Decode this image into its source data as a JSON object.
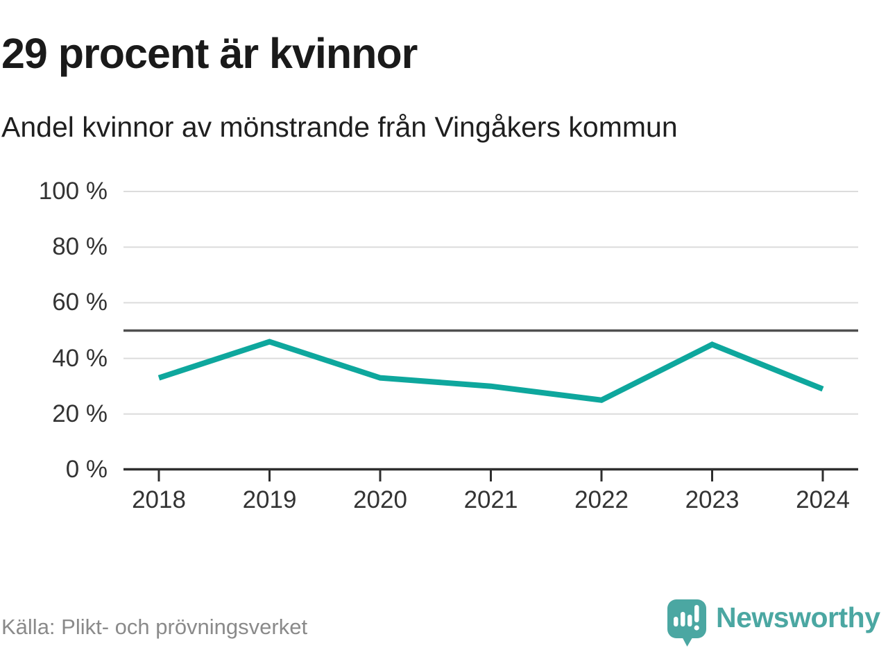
{
  "header": {
    "title": "29 procent är kvinnor",
    "subtitle": "Andel kvinnor av mönstrande från Vingåkers kommun"
  },
  "chart_data": {
    "type": "line",
    "title": "29 procent är kvinnor",
    "subtitle": "Andel kvinnor av mönstrande från Vingåkers kommun",
    "x": [
      "2018",
      "2019",
      "2020",
      "2021",
      "2022",
      "2023",
      "2024"
    ],
    "series": [
      {
        "name": "Andel kvinnor av mönstrande",
        "values": [
          33,
          46,
          33,
          30,
          25,
          45,
          29
        ]
      }
    ],
    "unit": "%",
    "ylim": [
      0,
      100
    ],
    "yticks": [
      {
        "value": 0,
        "label": "0 %"
      },
      {
        "value": 20,
        "label": "20 %"
      },
      {
        "value": 40,
        "label": "40 %"
      },
      {
        "value": 60,
        "label": "60 %"
      },
      {
        "value": 80,
        "label": "80 %"
      },
      {
        "value": 100,
        "label": "100 %"
      }
    ],
    "reference_line": {
      "value": 50
    },
    "grid": "horizontal",
    "legend": "none",
    "line_color": "#0ea79d",
    "latest_value_pct": 29
  },
  "footer": {
    "source": "Källa: Plikt- och prövningsverket",
    "brand": "Newsworthy"
  },
  "colors": {
    "accent_teal": "#0ea79d",
    "logo_teal": "#4ba7a2",
    "text_dark": "#1a1a1a",
    "axis_label": "#333333",
    "grid": "#dcdcdc",
    "reference": "#4f4f4f",
    "axis": "#2e2e2e",
    "muted": "#8a8a8a"
  }
}
